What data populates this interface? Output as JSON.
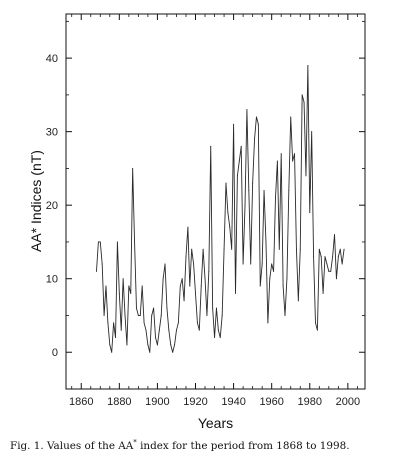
{
  "chart_data": {
    "type": "line",
    "xlabel": "Years",
    "ylabel": "AA* Indices (nT)",
    "xlim": [
      1852,
      2009
    ],
    "ylim": [
      -5,
      46
    ],
    "xticks": [
      1860,
      1880,
      1900,
      1920,
      1940,
      1960,
      1980,
      2000
    ],
    "yticks": [
      0,
      10,
      20,
      30,
      40
    ],
    "x_minor_step": 5,
    "y_minor_step": 5,
    "grid": false,
    "legend": "none",
    "line_color": "#2a2a2a",
    "series": [
      {
        "x": [
          1868,
          1869,
          1870,
          1871,
          1872,
          1873,
          1874,
          1875,
          1876,
          1877,
          1878,
          1879,
          1880,
          1881,
          1882,
          1883,
          1884,
          1885,
          1886,
          1887,
          1888,
          1889,
          1890,
          1891,
          1892,
          1893,
          1894,
          1895,
          1896,
          1897,
          1898,
          1899,
          1900,
          1901,
          1902,
          1903,
          1904,
          1905,
          1906,
          1907,
          1908,
          1909,
          1910,
          1911,
          1912,
          1913,
          1914,
          1915,
          1916,
          1917,
          1918,
          1919,
          1920,
          1921,
          1922,
          1923,
          1924,
          1925,
          1926,
          1927,
          1928,
          1929,
          1930,
          1931,
          1932,
          1933,
          1934,
          1935,
          1936,
          1937,
          1938,
          1939,
          1940,
          1941,
          1942,
          1943,
          1944,
          1945,
          1946,
          1947,
          1948,
          1949,
          1950,
          1951,
          1952,
          1953,
          1954,
          1955,
          1956,
          1957,
          1958,
          1959,
          1960,
          1961,
          1962,
          1963,
          1964,
          1965,
          1966,
          1967,
          1968,
          1969,
          1970,
          1971,
          1972,
          1973,
          1974,
          1975,
          1976,
          1977,
          1978,
          1979,
          1980,
          1981,
          1982,
          1983,
          1984,
          1985,
          1986,
          1987,
          1988,
          1989,
          1990,
          1991,
          1992,
          1993,
          1994,
          1995,
          1996,
          1997,
          1998
        ],
        "y": [
          11,
          15,
          15,
          12,
          5,
          9,
          4,
          1,
          0,
          4,
          2,
          15,
          8,
          3,
          10,
          5,
          1,
          9,
          8,
          25,
          15,
          6,
          5,
          5,
          9,
          4,
          3,
          1,
          0,
          5,
          6,
          2,
          1,
          3,
          5,
          10,
          12,
          6,
          3,
          1,
          0,
          1,
          3,
          4,
          9,
          10,
          7,
          13,
          17,
          9,
          14,
          12,
          8,
          4,
          3,
          9,
          14,
          10,
          5,
          11,
          28,
          6,
          2,
          6,
          3,
          2,
          5,
          14,
          23,
          19,
          17,
          14,
          31,
          8,
          24,
          26,
          28,
          12,
          20,
          33,
          22,
          12,
          23,
          29,
          32,
          31,
          9,
          12,
          22,
          15,
          4,
          10,
          12,
          11,
          21,
          26,
          14,
          27,
          9,
          5,
          10,
          22,
          32,
          26,
          27,
          14,
          7,
          14,
          35,
          34,
          24,
          39,
          19,
          30,
          13,
          4,
          3,
          14,
          13,
          8,
          13,
          12,
          11,
          11,
          13,
          16,
          10,
          13,
          14,
          12,
          14
        ]
      }
    ]
  },
  "caption": {
    "prefix": "Fig. 1. Values of the AA",
    "sup": "*",
    "suffix": " index for the period from 1868 to 1998."
  }
}
